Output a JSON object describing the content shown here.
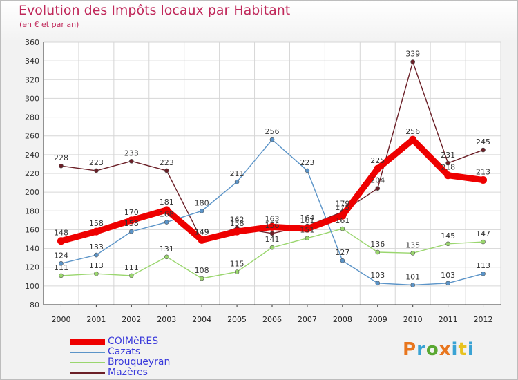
{
  "header": {
    "title": "Evolution des Impôts locaux par Habitant",
    "subtitle": "(en € et par an)"
  },
  "logo": {
    "text": "Proxiti",
    "colors": [
      "#e8761e",
      "#3aa3d4",
      "#5aa832",
      "#e8761e",
      "#3aa3d4",
      "#e8c21e",
      "#3aa3d4"
    ]
  },
  "chart_data": {
    "type": "line",
    "x": [
      "2000",
      "2001",
      "2002",
      "2003",
      "2004",
      "2005",
      "2006",
      "2007",
      "2008",
      "2009",
      "2010",
      "2011",
      "2012"
    ],
    "ylim": [
      80,
      360
    ],
    "yticks": [
      80,
      100,
      120,
      140,
      160,
      180,
      200,
      220,
      240,
      260,
      280,
      300,
      320,
      340,
      360
    ],
    "grid": true,
    "legend_position": "bottom-left",
    "series": [
      {
        "name": "Mazères",
        "color": "#6b1f27",
        "values": [
          228,
          223,
          233,
          223,
          149,
          162,
          156,
          164,
          179,
          204,
          339,
          231,
          245
        ]
      },
      {
        "name": "Brouqueyran",
        "color": "#9ad66e",
        "values": [
          111,
          113,
          111,
          131,
          108,
          115,
          141,
          151,
          161,
          136,
          135,
          145,
          147
        ]
      },
      {
        "name": "Cazats",
        "color": "#5b94c8",
        "values": [
          124,
          133,
          158,
          168,
          180,
          211,
          256,
          223,
          127,
          103,
          101,
          103,
          113
        ]
      },
      {
        "name": "COIMèRES",
        "color": "#ee0000",
        "values": [
          148,
          158,
          170,
          181,
          149,
          158,
          163,
          161,
          175,
          225,
          256,
          218,
          213
        ]
      }
    ]
  },
  "legend": [
    {
      "name": "COIMèRES",
      "color": "#ee0000",
      "thickness": 9
    },
    {
      "name": "Cazats",
      "color": "#5b94c8",
      "thickness": 2
    },
    {
      "name": "Brouqueyran",
      "color": "#9ad66e",
      "thickness": 2
    },
    {
      "name": "Mazères",
      "color": "#6b1f27",
      "thickness": 2
    }
  ]
}
